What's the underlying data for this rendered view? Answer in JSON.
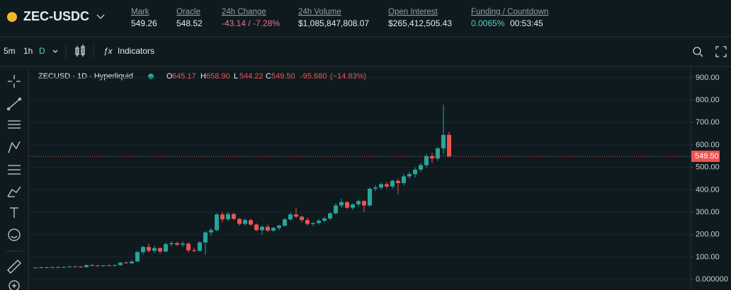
{
  "header": {
    "symbol": "ZEC-USDC",
    "stats": [
      {
        "label": "Mark",
        "value": "549.26"
      },
      {
        "label": "Oracle",
        "value": "548.52"
      },
      {
        "label": "24h Change",
        "value": "-43.14 / -7.28%"
      },
      {
        "label": "24h Volume",
        "value": "$1,085,847,808.07"
      },
      {
        "label": "Open Interest",
        "value": "$265,412,505.43"
      },
      {
        "label": "Funding / Countdown",
        "value": "0.0065%",
        "value2": "00:53:45"
      }
    ]
  },
  "toolbar": {
    "intervals": [
      "5m",
      "1h",
      "D"
    ],
    "indicators": "Indicators"
  },
  "chart_data": {
    "type": "candlestick",
    "title": "ZECUSD · 1D · Hyperliquid",
    "ohlc_prefixes": [
      "O",
      "H",
      "L",
      "C"
    ],
    "ohlc_labels": [
      "645.17",
      "658.90",
      "544.22",
      "549.50"
    ],
    "change_label": "-95.680",
    "change_pct_label": "(−14.83%)",
    "up_color": "#26a69a",
    "down_color": "#ef5350",
    "grid": true,
    "ylim": [
      -47,
      947
    ],
    "yticks": [
      {
        "value": 0,
        "label": "0.000000"
      },
      {
        "value": 100,
        "label": "100.00"
      },
      {
        "value": 200,
        "label": "200.00"
      },
      {
        "value": 300,
        "label": "300.00"
      },
      {
        "value": 400,
        "label": "400.00"
      },
      {
        "value": 500,
        "label": "500.00"
      },
      {
        "value": 600,
        "label": "600.00"
      },
      {
        "value": 700,
        "label": "700.00"
      },
      {
        "value": 800,
        "label": "800.00"
      },
      {
        "value": 900,
        "label": "900.00"
      }
    ],
    "last_price": {
      "value": 549.5,
      "label": "549.50"
    },
    "open": [
      52,
      53,
      54,
      53,
      55,
      54,
      56,
      58,
      57,
      55,
      64,
      62,
      60,
      63,
      62,
      64,
      75,
      72,
      80,
      122,
      145,
      128,
      140,
      125,
      158,
      162,
      155,
      160,
      130,
      128,
      165,
      210,
      220,
      290,
      268,
      292,
      270,
      248,
      265,
      245,
      220,
      235,
      218,
      230,
      240,
      268,
      290,
      280,
      265,
      248,
      252,
      262,
      272,
      295,
      330,
      345,
      320,
      335,
      350,
      330,
      405,
      410,
      425,
      415,
      440,
      430,
      460,
      470,
      490,
      510,
      550,
      540,
      585,
      645.17
    ],
    "high": [
      55,
      56,
      57,
      56,
      58,
      57,
      60,
      62,
      60,
      66,
      68,
      65,
      64,
      67,
      66,
      78,
      80,
      85,
      128,
      150,
      160,
      150,
      142,
      165,
      170,
      168,
      170,
      165,
      140,
      170,
      215,
      230,
      295,
      300,
      300,
      296,
      275,
      272,
      270,
      250,
      240,
      245,
      235,
      245,
      275,
      300,
      320,
      285,
      275,
      255,
      270,
      280,
      300,
      340,
      360,
      350,
      340,
      355,
      355,
      410,
      420,
      432,
      435,
      445,
      450,
      470,
      480,
      500,
      520,
      560,
      565,
      590,
      780,
      658.9
    ],
    "low": [
      50,
      51,
      52,
      50,
      52,
      51,
      54,
      55,
      53,
      54,
      58,
      58,
      57,
      60,
      58,
      62,
      70,
      70,
      78,
      110,
      120,
      118,
      115,
      122,
      148,
      150,
      145,
      120,
      122,
      125,
      110,
      195,
      215,
      255,
      260,
      265,
      240,
      240,
      238,
      215,
      200,
      210,
      212,
      220,
      235,
      262,
      275,
      255,
      240,
      238,
      245,
      255,
      265,
      290,
      320,
      315,
      310,
      325,
      300,
      325,
      395,
      400,
      405,
      405,
      380,
      420,
      450,
      455,
      480,
      500,
      520,
      530,
      560,
      544.22
    ],
    "close": [
      53,
      54,
      53,
      55,
      54,
      56,
      58,
      57,
      55,
      64,
      62,
      60,
      63,
      62,
      64,
      75,
      72,
      80,
      122,
      145,
      128,
      140,
      125,
      158,
      162,
      155,
      160,
      130,
      128,
      165,
      210,
      220,
      290,
      268,
      292,
      270,
      248,
      265,
      245,
      220,
      235,
      218,
      230,
      240,
      268,
      290,
      280,
      265,
      248,
      252,
      262,
      272,
      295,
      330,
      345,
      320,
      335,
      350,
      330,
      405,
      410,
      425,
      415,
      440,
      430,
      460,
      470,
      490,
      510,
      550,
      540,
      585,
      645,
      549.5
    ]
  }
}
